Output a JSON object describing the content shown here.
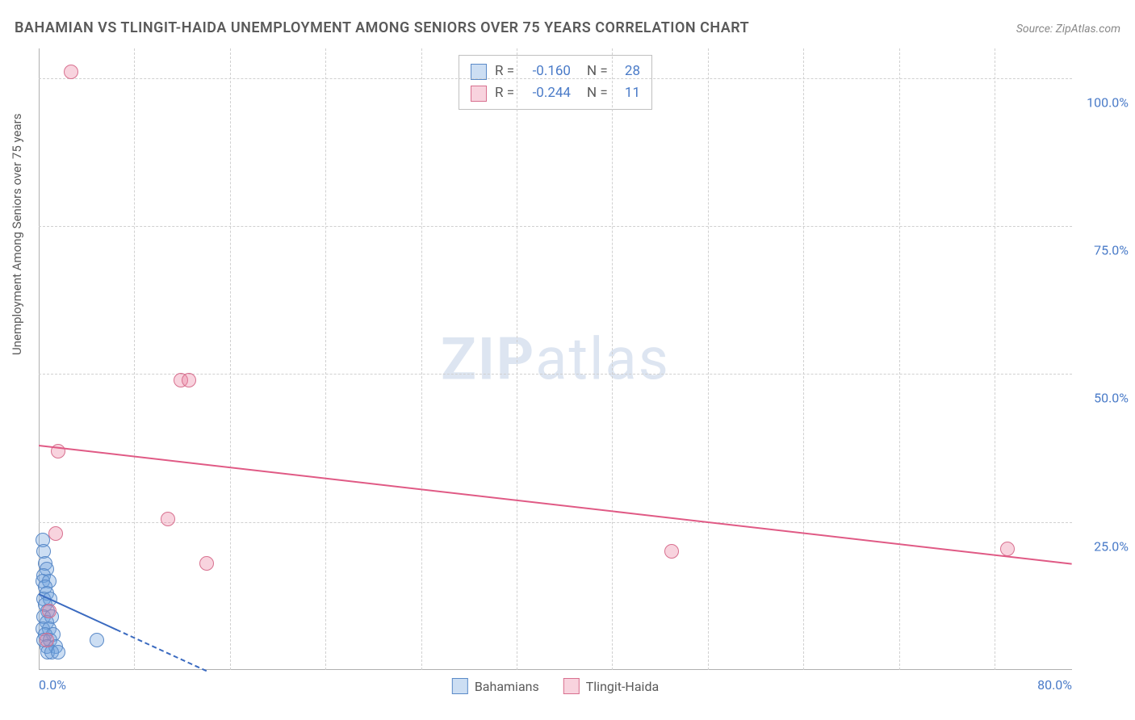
{
  "title": "BAHAMIAN VS TLINGIT-HAIDA UNEMPLOYMENT AMONG SENIORS OVER 75 YEARS CORRELATION CHART",
  "source_label": "Source: ZipAtlas.com",
  "y_axis_label": "Unemployment Among Seniors over 75 years",
  "watermark_bold": "ZIP",
  "watermark_light": "atlas",
  "chart": {
    "type": "scatter",
    "background_color": "#ffffff",
    "grid_color": "#d0d0d0",
    "axis_color": "#b0b0b0",
    "xlim": [
      0,
      80
    ],
    "ylim": [
      0,
      105
    ],
    "y_ticks": [
      25,
      50,
      75,
      100
    ],
    "y_tick_labels": [
      "25.0%",
      "50.0%",
      "75.0%",
      "100.0%"
    ],
    "x_ticks": [
      0,
      80
    ],
    "x_tick_labels": [
      "0.0%",
      "80.0%"
    ],
    "x_minor_gridlines": [
      7.4,
      14.8,
      22.2,
      29.6,
      37.0,
      44.4,
      51.8,
      59.2,
      66.6,
      74.0
    ],
    "marker_radius": 9,
    "marker_stroke_width": 1.5,
    "series": [
      {
        "name": "Bahamians",
        "r_value": "-0.160",
        "n_value": "28",
        "fill": "rgba(110,160,220,0.35)",
        "stroke": "#5a8ac8",
        "trend_color": "#3a6ac0",
        "trend_start": {
          "x": 0,
          "y": 13
        },
        "trend_end": {
          "x": 6,
          "y": 7
        },
        "trend_dash_end": {
          "x": 13,
          "y": 0
        },
        "points": [
          {
            "x": 0.3,
            "y": 22
          },
          {
            "x": 0.4,
            "y": 20
          },
          {
            "x": 0.5,
            "y": 18
          },
          {
            "x": 0.6,
            "y": 17
          },
          {
            "x": 0.4,
            "y": 16
          },
          {
            "x": 0.3,
            "y": 15
          },
          {
            "x": 0.8,
            "y": 15
          },
          {
            "x": 0.5,
            "y": 14
          },
          {
            "x": 0.6,
            "y": 13
          },
          {
            "x": 0.4,
            "y": 12
          },
          {
            "x": 0.9,
            "y": 12
          },
          {
            "x": 0.5,
            "y": 11
          },
          {
            "x": 0.7,
            "y": 10
          },
          {
            "x": 0.4,
            "y": 9
          },
          {
            "x": 1.0,
            "y": 9
          },
          {
            "x": 0.6,
            "y": 8
          },
          {
            "x": 0.3,
            "y": 7
          },
          {
            "x": 0.8,
            "y": 7
          },
          {
            "x": 0.5,
            "y": 6
          },
          {
            "x": 1.1,
            "y": 6
          },
          {
            "x": 0.4,
            "y": 5
          },
          {
            "x": 0.9,
            "y": 5
          },
          {
            "x": 0.6,
            "y": 4
          },
          {
            "x": 1.3,
            "y": 4
          },
          {
            "x": 0.7,
            "y": 3
          },
          {
            "x": 1.0,
            "y": 3
          },
          {
            "x": 1.5,
            "y": 3
          },
          {
            "x": 4.5,
            "y": 5
          }
        ]
      },
      {
        "name": "Tlingit-Haida",
        "r_value": "-0.244",
        "n_value": "11",
        "fill": "rgba(235,130,160,0.35)",
        "stroke": "#d8708f",
        "trend_color": "#e05a85",
        "trend_start": {
          "x": 0,
          "y": 38
        },
        "trend_end": {
          "x": 80,
          "y": 18
        },
        "points": [
          {
            "x": 2.5,
            "y": 101
          },
          {
            "x": 11,
            "y": 49
          },
          {
            "x": 11.6,
            "y": 49
          },
          {
            "x": 1.5,
            "y": 37
          },
          {
            "x": 10,
            "y": 25.5
          },
          {
            "x": 1.3,
            "y": 23
          },
          {
            "x": 13,
            "y": 18
          },
          {
            "x": 49,
            "y": 20
          },
          {
            "x": 75,
            "y": 20.5
          },
          {
            "x": 0.8,
            "y": 10
          },
          {
            "x": 0.6,
            "y": 5
          }
        ]
      }
    ],
    "legend_labels": {
      "r": "R =",
      "n": "N ="
    },
    "value_color": "#4a7bc8",
    "label_color": "#5a5a5a"
  }
}
